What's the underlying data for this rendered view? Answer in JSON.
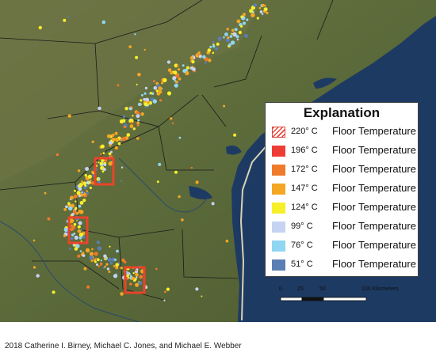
{
  "legend": {
    "title": "Explanation",
    "items": [
      {
        "temp": "220° C",
        "label": "Floor Temperature",
        "color": "#e3473d",
        "hatched": true
      },
      {
        "temp": "196° C",
        "label": "Floor Temperature",
        "color": "#ef3b35",
        "hatched": false
      },
      {
        "temp": "172° C",
        "label": "Floor Temperature",
        "color": "#f07a2c",
        "hatched": false
      },
      {
        "temp": "147° C",
        "label": "Floor Temperature",
        "color": "#f5a623",
        "hatched": false
      },
      {
        "temp": "124° C",
        "label": "Floor Temperature",
        "color": "#f7ef2a",
        "hatched": false
      },
      {
        "temp": "99° C",
        "label": "Floor Temperature",
        "color": "#c7d3f3",
        "hatched": false
      },
      {
        "temp": "76° C",
        "label": "Floor Temperature",
        "color": "#8fd6f3",
        "hatched": false
      },
      {
        "temp": "51° C",
        "label": "Floor Temperature",
        "color": "#5b7fb5",
        "hatched": false
      }
    ]
  },
  "scale": {
    "ticks": [
      "0",
      "25",
      "50",
      "100 Kilometers"
    ]
  },
  "credit": "2018 Catherine I. Birney, Michael C. Jones, and Michael E. Webber",
  "colors": {
    "gulf_water": "#1d3a63",
    "land": "#5d6b3d",
    "highlight_box": "#e8442a"
  }
}
